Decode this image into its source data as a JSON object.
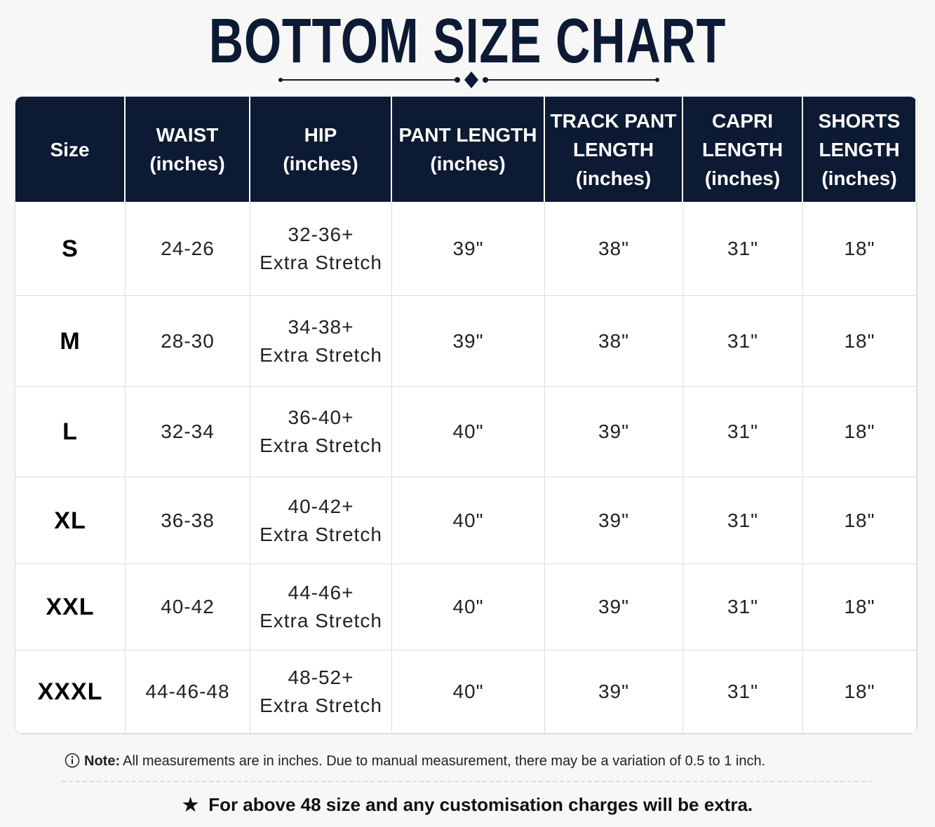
{
  "title": "BOTTOM SIZE CHART",
  "table": {
    "header": [
      [
        "Size"
      ],
      [
        "WAIST",
        "(inches)"
      ],
      [
        "HIP",
        "(inches)"
      ],
      [
        "PANT LENGTH",
        "(inches)"
      ],
      [
        "TRACK PANT",
        "LENGTH",
        "(inches)"
      ],
      [
        "CAPRI",
        "LENGTH",
        "(inches)"
      ],
      [
        "SHORTS",
        "LENGTH",
        "(inches)"
      ]
    ],
    "rows": [
      [
        [
          "S"
        ],
        [
          "24-26"
        ],
        [
          "32-36+",
          "Extra Stretch"
        ],
        [
          "39\""
        ],
        [
          "38\""
        ],
        [
          "31\""
        ],
        [
          "18\""
        ]
      ],
      [
        [
          "M"
        ],
        [
          "28-30"
        ],
        [
          "34-38+",
          "Extra Stretch"
        ],
        [
          "39\""
        ],
        [
          "38\""
        ],
        [
          "31\""
        ],
        [
          "18\""
        ]
      ],
      [
        [
          "L"
        ],
        [
          "32-34"
        ],
        [
          "36-40+",
          "Extra Stretch"
        ],
        [
          "40\""
        ],
        [
          "39\""
        ],
        [
          "31\""
        ],
        [
          "18\""
        ]
      ],
      [
        [
          "XL"
        ],
        [
          "36-38"
        ],
        [
          "40-42+",
          "Extra Stretch"
        ],
        [
          "40\""
        ],
        [
          "39\""
        ],
        [
          "31\""
        ],
        [
          "18\""
        ]
      ],
      [
        [
          "XXL"
        ],
        [
          "40-42"
        ],
        [
          "44-46+",
          "Extra Stretch"
        ],
        [
          "40\""
        ],
        [
          "39\""
        ],
        [
          "31\""
        ],
        [
          "18\""
        ]
      ],
      [
        [
          "XXXL"
        ],
        [
          "44-46-48"
        ],
        [
          "48-52+",
          "Extra Stretch"
        ],
        [
          "40\""
        ],
        [
          "39\""
        ],
        [
          "31\""
        ],
        [
          "18\""
        ]
      ]
    ]
  },
  "note": {
    "label": "Note:",
    "text": "All measurements are in inches. Due to manual measurement, there may be a variation of 0.5 to 1 inch."
  },
  "footer": "For above 48 size and any customisation charges will be extra."
}
